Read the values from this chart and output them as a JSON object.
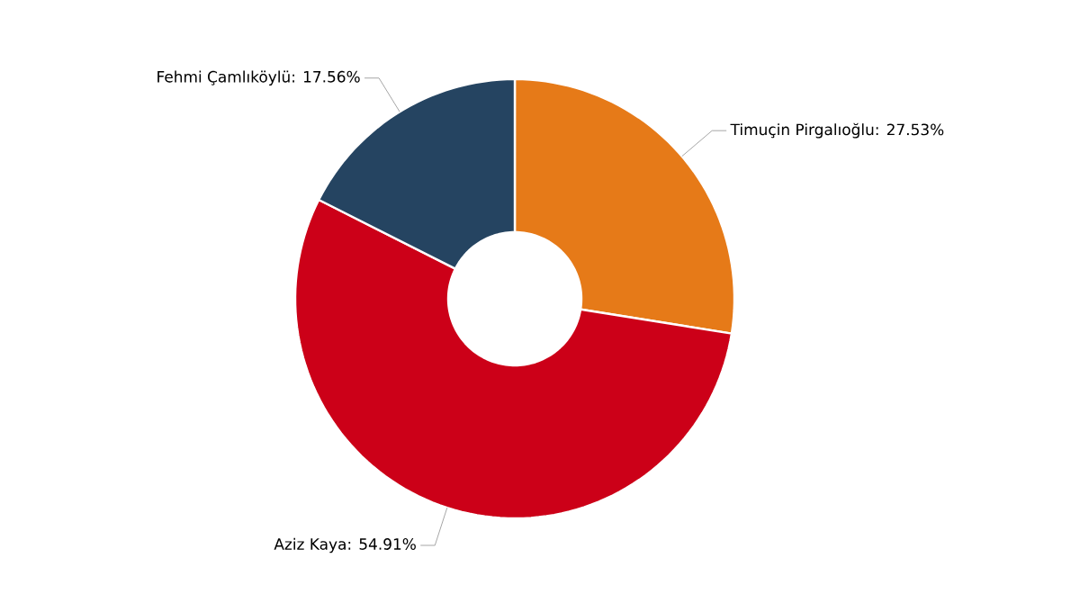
{
  "chart_data": {
    "type": "donut",
    "categories": [
      "Timuçin Pirgalıoğlu",
      "Aziz Kaya",
      "Fehmi Çamlıköylü"
    ],
    "values": [
      27.53,
      54.91,
      17.56
    ],
    "value_labels": [
      ": 27.53%",
      ": 54.91%",
      ": 17.56%"
    ],
    "colors": [
      "#e67a18",
      "#cc0018",
      "#254461"
    ]
  }
}
